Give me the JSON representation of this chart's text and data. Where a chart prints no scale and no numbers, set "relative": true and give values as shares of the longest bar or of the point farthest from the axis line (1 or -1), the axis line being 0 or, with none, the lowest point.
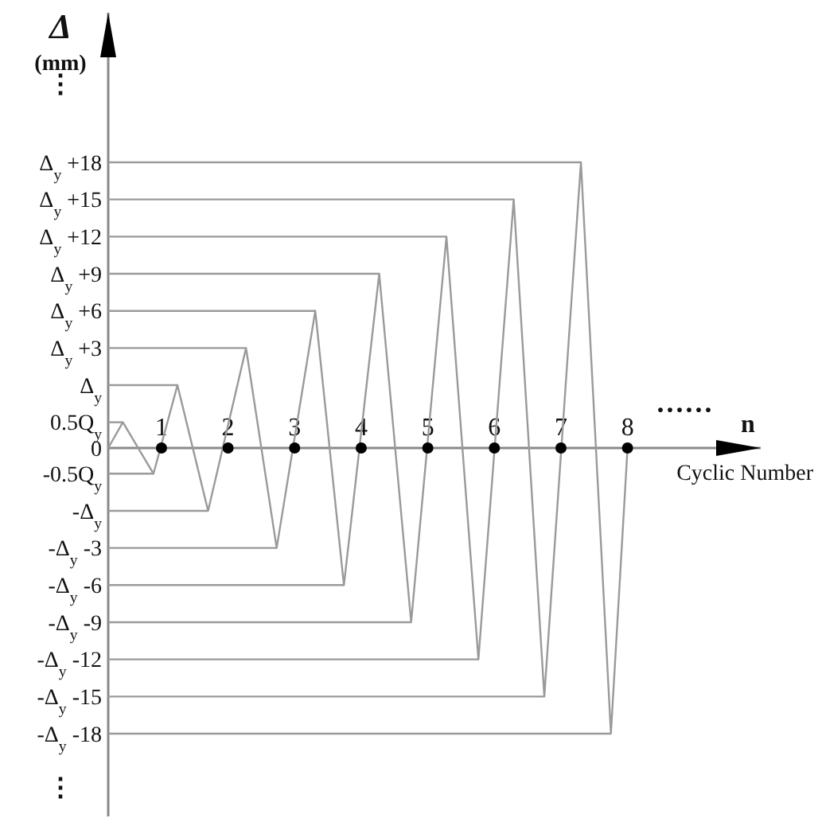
{
  "chart_data": {
    "type": "line",
    "relative": true,
    "xlabel": "Cyclic Number",
    "ylabel": "Δ (mm)",
    "annotations": [
      "n",
      "······",
      "⋮",
      "⋮",
      "Δ$_{y}$ +18",
      "Δ$_{y}$ +15",
      "Δ$_{y}$ +12",
      "Δ$_{y}$ +9",
      "Δ$_{y}$ +6",
      "Δ$_{y}$ +3",
      "Δ$_{y}$",
      "0.5Q$_{y}$",
      "0",
      "-0.5Q$_{y}$",
      "-Δ$_{y}$",
      "-Δ$_{y}$ -3",
      "-Δ$_{y}$ -6",
      "-Δ$_{y}$ -9",
      "-Δ$_{y}$ -12",
      "-Δ$_{y}$ -15",
      "-Δ$_{y}$ -18"
    ],
    "xlim": [
      0.2,
      10
    ],
    "xticks": [
      1,
      2,
      3,
      4,
      5,
      6,
      7,
      8
    ],
    "series": [
      {
        "color": "#9a9a9a",
        "x": [
          0.2,
          0.42,
          0.88,
          1.24,
          1.7,
          2.27,
          2.73,
          3.31,
          3.74,
          4.27,
          4.75,
          5.28,
          5.76,
          6.29,
          6.75,
          7.3,
          7.75,
          8
        ],
        "values": [
          0,
          0.09,
          -0.09,
          0.22,
          -0.22,
          0.35,
          -0.35,
          0.48,
          -0.48,
          0.61,
          -0.61,
          0.74,
          -0.74,
          0.87,
          -0.87,
          1,
          -1,
          0
        ]
      },
      {
        "color": "#9a9a9a",
        "x": [
          0.2,
          0.42
        ],
        "values": [
          0.09,
          0.09
        ]
      },
      {
        "color": "#9a9a9a",
        "x": [
          0.2,
          0.88
        ],
        "values": [
          -0.09,
          -0.09
        ]
      },
      {
        "color": "#9a9a9a",
        "x": [
          0.2,
          1.24
        ],
        "values": [
          0.22,
          0.22
        ]
      },
      {
        "color": "#9a9a9a",
        "x": [
          0.2,
          1.7
        ],
        "values": [
          -0.22,
          -0.22
        ]
      },
      {
        "color": "#9a9a9a",
        "x": [
          0.2,
          2.27
        ],
        "values": [
          0.35,
          0.35
        ]
      },
      {
        "color": "#9a9a9a",
        "x": [
          0.2,
          2.73
        ],
        "values": [
          -0.35,
          -0.35
        ]
      },
      {
        "color": "#9a9a9a",
        "x": [
          0.2,
          3.31
        ],
        "values": [
          0.48,
          0.48
        ]
      },
      {
        "color": "#9a9a9a",
        "x": [
          0.2,
          3.74
        ],
        "values": [
          -0.48,
          -0.48
        ]
      },
      {
        "color": "#9a9a9a",
        "x": [
          0.2,
          4.27
        ],
        "values": [
          0.61,
          0.61
        ]
      },
      {
        "color": "#9a9a9a",
        "x": [
          0.2,
          4.75
        ],
        "values": [
          -0.61,
          -0.61
        ]
      },
      {
        "color": "#9a9a9a",
        "x": [
          0.2,
          5.28
        ],
        "values": [
          0.74,
          0.74
        ]
      },
      {
        "color": "#9a9a9a",
        "x": [
          0.2,
          5.76
        ],
        "values": [
          -0.74,
          -0.74
        ]
      },
      {
        "color": "#9a9a9a",
        "x": [
          0.2,
          6.29
        ],
        "values": [
          0.87,
          0.87
        ]
      },
      {
        "color": "#9a9a9a",
        "x": [
          0.2,
          6.75
        ],
        "values": [
          -0.87,
          -0.87
        ]
      },
      {
        "color": "#9a9a9a",
        "x": [
          0.2,
          7.3
        ],
        "values": [
          1,
          1
        ]
      },
      {
        "color": "#9a9a9a",
        "x": [
          0.2,
          7.75
        ],
        "values": [
          -1,
          -1
        ]
      },
      {
        "type": "scatter",
        "color": "#000000",
        "marker": "circle",
        "x": [
          1,
          2,
          3,
          4,
          5,
          6,
          7,
          8
        ],
        "values": [
          0,
          0,
          0,
          0,
          0,
          0,
          0,
          0
        ]
      }
    ]
  }
}
